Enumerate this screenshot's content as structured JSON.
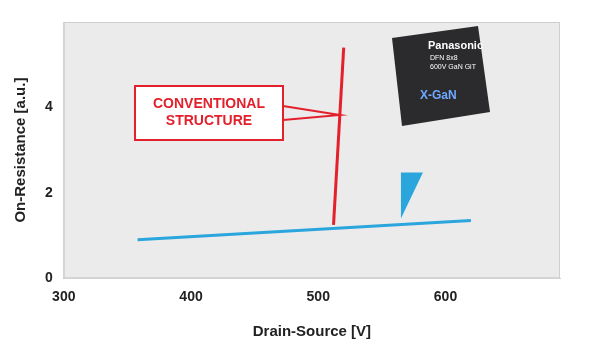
{
  "chart_data": {
    "type": "line",
    "x_label": "Drain-Source [V]",
    "y_label": "On-Resistance [a.u.]",
    "series": [
      {
        "color": "#e3202b",
        "x": [
          512,
          520
        ],
        "values": [
          1.25,
          5.4
        ]
      },
      {
        "color": "#2aa6dd",
        "x": [
          358,
          620
        ],
        "values": [
          0.9,
          1.35
        ]
      }
    ],
    "xlim": [
      300,
      690
    ],
    "xticks": [
      300,
      400,
      500,
      600
    ],
    "ylim": [
      0,
      6
    ],
    "yticks": [
      0,
      2,
      4
    ],
    "grid": false,
    "annotations": [
      "CONVENTIONAL STRUCTURE",
      "Panasonic",
      "DFN 8x8",
      "600V GaN GiT",
      "X-GaN"
    ]
  }
}
